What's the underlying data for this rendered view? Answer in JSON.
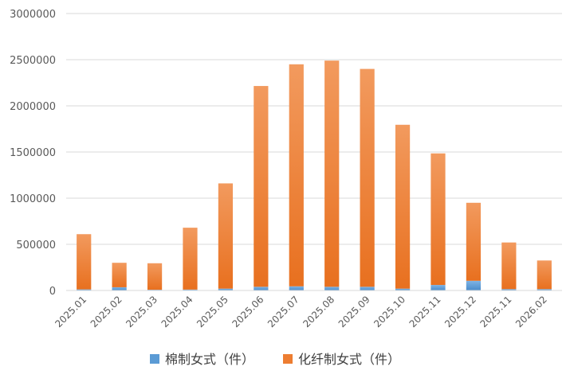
{
  "chart_data": {
    "type": "bar",
    "stacked": true,
    "categories": [
      "2025.01",
      "2025.02",
      "2025.03",
      "2025.04",
      "2025.05",
      "2025.06",
      "2025.07",
      "2025.08",
      "2025.09",
      "2025.10",
      "2025.11",
      "2025.12",
      "2025.11",
      "2026.02"
    ],
    "series": [
      {
        "name": "棉制女式（件）",
        "color": "#5B9BD5",
        "values": [
          12000,
          35000,
          8000,
          10000,
          20000,
          40000,
          45000,
          40000,
          40000,
          20000,
          60000,
          105000,
          15000,
          15000
        ]
      },
      {
        "name": "化纤制女式（件）",
        "color": "#ED7D31",
        "values": [
          598000,
          265000,
          287000,
          670000,
          1140000,
          2175000,
          2405000,
          2450000,
          2360000,
          1775000,
          1425000,
          845000,
          505000,
          310000
        ]
      }
    ],
    "y_ticks": [
      "0",
      "500000",
      "1000000",
      "1500000",
      "2000000",
      "2500000",
      "3000000"
    ],
    "ylim": [
      0,
      3000000
    ],
    "grid": true,
    "legend_position": "bottom"
  }
}
